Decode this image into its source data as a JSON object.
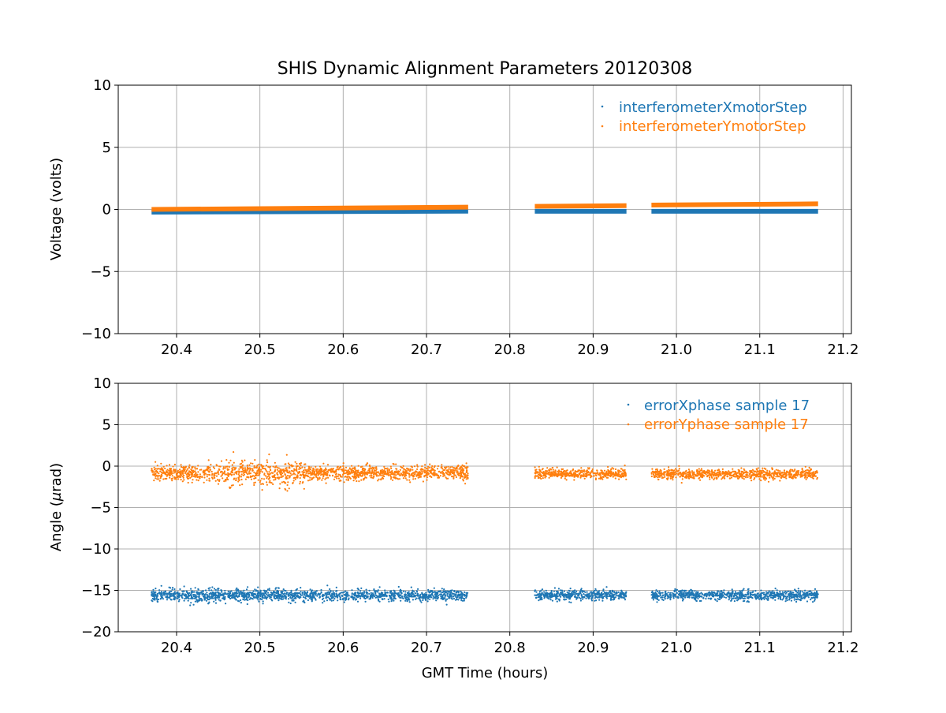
{
  "chart_data": [
    {
      "type": "scatter",
      "title": "SHIS Dynamic Alignment Parameters 20120308",
      "xlabel": "",
      "ylabel": "Voltage (volts)",
      "xlim": [
        20.33,
        21.21
      ],
      "ylim": [
        -10,
        10
      ],
      "x_ticks": [
        "20.4",
        "20.5",
        "20.6",
        "20.7",
        "20.8",
        "20.9",
        "21.0",
        "21.1",
        "21.2"
      ],
      "y_ticks": [
        "10",
        "5",
        "0",
        "−5",
        "−10"
      ],
      "grid": true,
      "legend_position": "top-right",
      "series": [
        {
          "name": "interferometerXmotorStep",
          "color": "#1f77b4",
          "segments": [
            {
              "x_start": 20.37,
              "x_end": 20.75,
              "y_start": -0.22,
              "y_end": -0.14
            },
            {
              "x_start": 20.83,
              "x_end": 20.94,
              "y_start": -0.15,
              "y_end": -0.15
            },
            {
              "x_start": 20.97,
              "x_end": 21.17,
              "y_start": -0.15,
              "y_end": -0.15
            }
          ]
        },
        {
          "name": "interferometerYmotorStep",
          "color": "#ff7f0e",
          "segments": [
            {
              "x_start": 20.37,
              "x_end": 20.75,
              "y_start": 0.0,
              "y_end": 0.18
            },
            {
              "x_start": 20.83,
              "x_end": 20.94,
              "y_start": 0.25,
              "y_end": 0.3
            },
            {
              "x_start": 20.97,
              "x_end": 21.17,
              "y_start": 0.35,
              "y_end": 0.45
            }
          ]
        }
      ]
    },
    {
      "type": "scatter",
      "title": "",
      "xlabel": "GMT Time (hours)",
      "ylabel_prefix": "Angle (",
      "ylabel_mu": "μ",
      "ylabel_suffix": "rad)",
      "xlim": [
        20.33,
        21.21
      ],
      "ylim": [
        -20,
        10
      ],
      "x_ticks": [
        "20.4",
        "20.5",
        "20.6",
        "20.7",
        "20.8",
        "20.9",
        "21.0",
        "21.1",
        "21.2"
      ],
      "y_ticks": [
        "10",
        "5",
        "0",
        "−5",
        "−10",
        "−15",
        "−20"
      ],
      "grid": true,
      "legend_position": "top-right",
      "series": [
        {
          "name": "errorXphase sample 17",
          "color": "#1f77b4",
          "segments": [
            {
              "x_start": 20.37,
              "x_end": 20.75,
              "mean": -15.6,
              "spread": 0.35
            },
            {
              "x_start": 20.83,
              "x_end": 20.94,
              "mean": -15.6,
              "spread": 0.3
            },
            {
              "x_start": 20.97,
              "x_end": 21.17,
              "mean": -15.6,
              "spread": 0.3
            }
          ]
        },
        {
          "name": "errorYphase sample 17",
          "color": "#ff7f0e",
          "segments": [
            {
              "x_start": 20.37,
              "x_end": 20.75,
              "mean": -0.8,
              "spread": 0.45
            },
            {
              "x_start": 20.83,
              "x_end": 20.94,
              "mean": -0.9,
              "spread": 0.3
            },
            {
              "x_start": 20.97,
              "x_end": 21.17,
              "mean": -0.95,
              "spread": 0.3
            }
          ]
        }
      ]
    }
  ]
}
